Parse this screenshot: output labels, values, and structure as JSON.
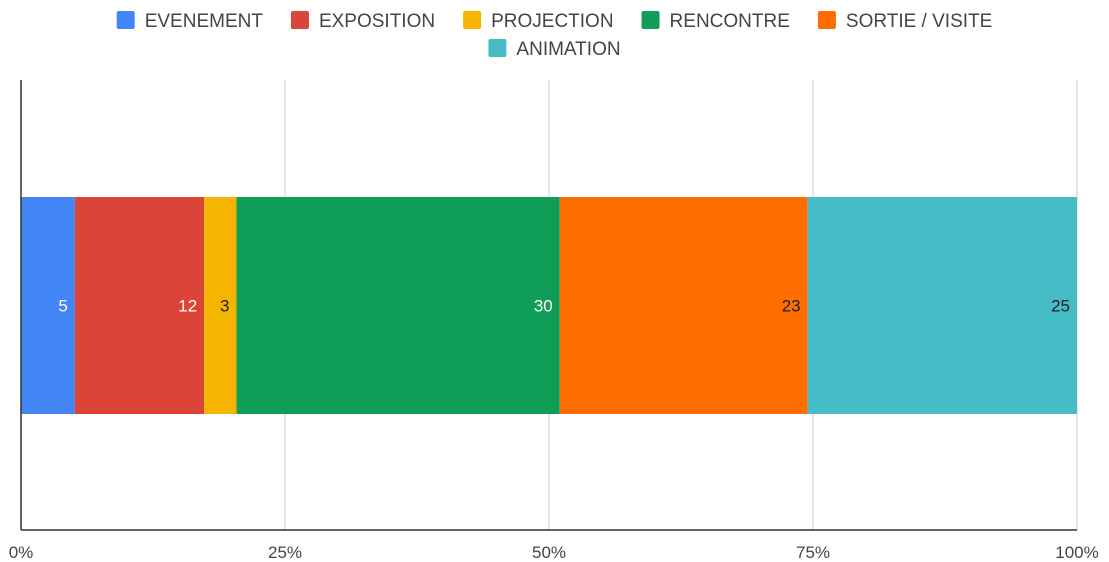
{
  "chart_data": {
    "type": "bar",
    "orientation": "horizontal",
    "stacked": "percent",
    "categories": [
      ""
    ],
    "series": [
      {
        "name": "EVENEMENT",
        "values": [
          5
        ],
        "color": "#4285F4",
        "label_color": "#ffffff"
      },
      {
        "name": "EXPOSITION",
        "values": [
          12
        ],
        "color": "#DB4437",
        "label_color": "#ffffff"
      },
      {
        "name": "PROJECTION",
        "values": [
          3
        ],
        "color": "#F4B400",
        "label_color": "#222222"
      },
      {
        "name": "RENCONTRE",
        "values": [
          30
        ],
        "color": "#0F9D58",
        "label_color": "#ffffff"
      },
      {
        "name": "SORTIE / VISITE",
        "values": [
          23
        ],
        "color": "#FF6D00",
        "label_color": "#222222"
      },
      {
        "name": "ANIMATION",
        "values": [
          25
        ],
        "color": "#46BDC6",
        "label_color": "#222222"
      }
    ],
    "x_ticks": [
      "0%",
      "25%",
      "50%",
      "75%",
      "100%"
    ],
    "xlim": [
      0,
      100
    ],
    "grid": true,
    "legend_position": "top",
    "title": "",
    "xlabel": "",
    "ylabel": ""
  }
}
